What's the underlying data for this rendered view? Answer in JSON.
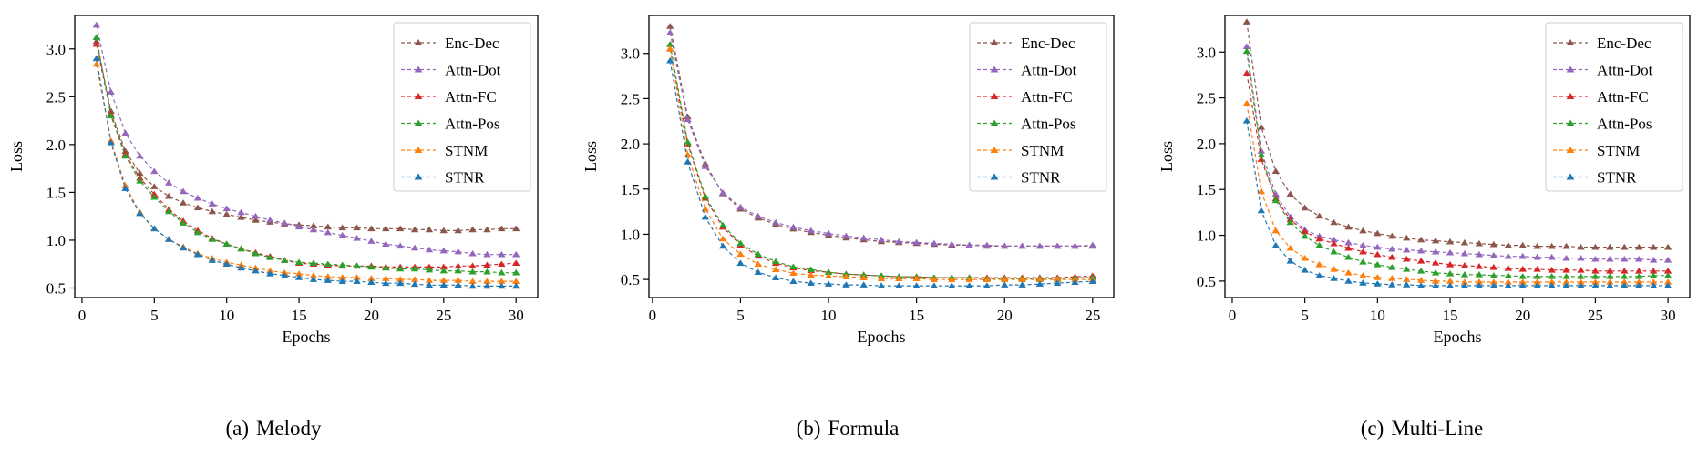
{
  "colors": {
    "Enc-Dec": "#8c564b",
    "Attn-Dot": "#9467bd",
    "Attn-FC": "#d62728",
    "Attn-Pos": "#2ca02c",
    "STNM": "#ff7f0e",
    "STNR": "#1f77b4"
  },
  "chart_data": [
    {
      "type": "line",
      "caption_tag": "(a)",
      "caption_title": "Melody",
      "xlabel": "Epochs",
      "ylabel": "Loss",
      "xlim": [
        -0.5,
        31.5
      ],
      "ylim": [
        0.4,
        3.35
      ],
      "xticks": [
        0,
        5,
        10,
        15,
        20,
        25,
        30
      ],
      "yticks": [
        0.5,
        1.0,
        1.5,
        2.0,
        2.5,
        3.0
      ],
      "ytick_labels": [
        "0.5",
        "1.0",
        "1.5",
        "2.0",
        "2.5",
        "3.0"
      ],
      "legend_position": "top-right",
      "x": [
        1,
        2,
        3,
        4,
        5,
        6,
        7,
        8,
        9,
        10,
        11,
        12,
        13,
        14,
        15,
        16,
        17,
        18,
        19,
        20,
        21,
        22,
        23,
        24,
        25,
        26,
        27,
        28,
        29,
        30
      ],
      "series": [
        {
          "name": "Enc-Dec",
          "values": [
            3.08,
            2.35,
            1.93,
            1.7,
            1.56,
            1.46,
            1.39,
            1.34,
            1.3,
            1.27,
            1.24,
            1.21,
            1.19,
            1.17,
            1.16,
            1.15,
            1.14,
            1.13,
            1.13,
            1.12,
            1.12,
            1.12,
            1.11,
            1.11,
            1.1,
            1.1,
            1.11,
            1.11,
            1.12,
            1.12
          ]
        },
        {
          "name": "Attn-Dot",
          "values": [
            3.25,
            2.55,
            2.12,
            1.88,
            1.72,
            1.6,
            1.51,
            1.44,
            1.38,
            1.33,
            1.29,
            1.25,
            1.21,
            1.18,
            1.14,
            1.11,
            1.08,
            1.05,
            1.02,
            0.99,
            0.96,
            0.94,
            0.92,
            0.9,
            0.89,
            0.88,
            0.86,
            0.85,
            0.85,
            0.85
          ]
        },
        {
          "name": "Attn-FC",
          "values": [
            3.05,
            2.32,
            1.9,
            1.65,
            1.48,
            1.32,
            1.2,
            1.1,
            1.02,
            0.96,
            0.91,
            0.87,
            0.83,
            0.79,
            0.76,
            0.75,
            0.74,
            0.73,
            0.73,
            0.73,
            0.72,
            0.72,
            0.72,
            0.72,
            0.72,
            0.73,
            0.73,
            0.74,
            0.75,
            0.76
          ]
        },
        {
          "name": "Attn-Pos",
          "values": [
            3.12,
            2.3,
            1.88,
            1.62,
            1.45,
            1.3,
            1.18,
            1.08,
            1.01,
            0.96,
            0.91,
            0.86,
            0.82,
            0.79,
            0.77,
            0.76,
            0.75,
            0.74,
            0.73,
            0.72,
            0.71,
            0.7,
            0.7,
            0.69,
            0.68,
            0.68,
            0.67,
            0.67,
            0.66,
            0.66
          ]
        },
        {
          "name": "STNM",
          "values": [
            2.84,
            2.04,
            1.57,
            1.29,
            1.12,
            1.01,
            0.93,
            0.86,
            0.81,
            0.77,
            0.74,
            0.71,
            0.68,
            0.66,
            0.65,
            0.63,
            0.62,
            0.61,
            0.61,
            0.6,
            0.6,
            0.59,
            0.59,
            0.58,
            0.58,
            0.58,
            0.57,
            0.57,
            0.57,
            0.57
          ]
        },
        {
          "name": "STNR",
          "values": [
            2.9,
            2.02,
            1.54,
            1.28,
            1.12,
            1.01,
            0.92,
            0.85,
            0.79,
            0.75,
            0.71,
            0.68,
            0.65,
            0.63,
            0.61,
            0.59,
            0.58,
            0.57,
            0.57,
            0.56,
            0.55,
            0.55,
            0.54,
            0.53,
            0.53,
            0.53,
            0.52,
            0.52,
            0.52,
            0.52
          ]
        }
      ]
    },
    {
      "type": "line",
      "caption_tag": "(b)",
      "caption_title": "Formula",
      "xlabel": "Epochs",
      "ylabel": "Loss",
      "xlim": [
        -0.2,
        26.2
      ],
      "ylim": [
        0.3,
        3.42
      ],
      "xticks": [
        0,
        5,
        10,
        15,
        20,
        25
      ],
      "yticks": [
        0.5,
        1.0,
        1.5,
        2.0,
        2.5,
        3.0
      ],
      "ytick_labels": [
        "0.5",
        "1.0",
        "1.5",
        "2.0",
        "2.5",
        "3.0"
      ],
      "legend_position": "top-right",
      "x": [
        1,
        2,
        3,
        4,
        5,
        6,
        7,
        8,
        9,
        10,
        11,
        12,
        13,
        14,
        15,
        16,
        17,
        18,
        19,
        20,
        21,
        22,
        23,
        24,
        25
      ],
      "series": [
        {
          "name": "Enc-Dec",
          "values": [
            3.3,
            2.3,
            1.78,
            1.45,
            1.28,
            1.18,
            1.11,
            1.06,
            1.02,
            0.99,
            0.96,
            0.94,
            0.92,
            0.91,
            0.9,
            0.89,
            0.88,
            0.88,
            0.87,
            0.87,
            0.87,
            0.87,
            0.87,
            0.87,
            0.87
          ]
        },
        {
          "name": "Attn-Dot",
          "values": [
            3.23,
            2.27,
            1.75,
            1.46,
            1.3,
            1.2,
            1.13,
            1.08,
            1.04,
            1.01,
            0.98,
            0.96,
            0.94,
            0.92,
            0.91,
            0.9,
            0.89,
            0.88,
            0.88,
            0.87,
            0.87,
            0.87,
            0.87,
            0.87,
            0.88
          ]
        },
        {
          "name": "Attn-FC",
          "values": [
            3.05,
            2.0,
            1.4,
            1.08,
            0.88,
            0.76,
            0.68,
            0.63,
            0.6,
            0.58,
            0.56,
            0.55,
            0.54,
            0.53,
            0.53,
            0.52,
            0.52,
            0.52,
            0.52,
            0.52,
            0.52,
            0.52,
            0.52,
            0.53,
            0.54
          ]
        },
        {
          "name": "Attn-Pos",
          "values": [
            3.1,
            2.02,
            1.42,
            1.1,
            0.9,
            0.78,
            0.7,
            0.64,
            0.61,
            0.58,
            0.56,
            0.55,
            0.54,
            0.53,
            0.53,
            0.52,
            0.52,
            0.52,
            0.51,
            0.51,
            0.51,
            0.51,
            0.51,
            0.52,
            0.52
          ]
        },
        {
          "name": "STNM",
          "values": [
            3.05,
            1.88,
            1.28,
            0.95,
            0.78,
            0.67,
            0.61,
            0.57,
            0.55,
            0.54,
            0.53,
            0.52,
            0.51,
            0.51,
            0.51,
            0.5,
            0.5,
            0.5,
            0.5,
            0.5,
            0.5,
            0.5,
            0.5,
            0.5,
            0.5
          ]
        },
        {
          "name": "STNR",
          "values": [
            2.92,
            1.8,
            1.19,
            0.87,
            0.68,
            0.58,
            0.52,
            0.48,
            0.46,
            0.45,
            0.44,
            0.44,
            0.43,
            0.43,
            0.43,
            0.43,
            0.43,
            0.43,
            0.43,
            0.44,
            0.44,
            0.45,
            0.46,
            0.47,
            0.48
          ]
        }
      ]
    },
    {
      "type": "line",
      "caption_tag": "(c)",
      "caption_title": "Multi-Line",
      "xlabel": "Epochs",
      "ylabel": "Loss",
      "xlim": [
        -0.5,
        31.5
      ],
      "ylim": [
        0.32,
        3.4
      ],
      "xticks": [
        0,
        5,
        10,
        15,
        20,
        25,
        30
      ],
      "yticks": [
        0.5,
        1.0,
        1.5,
        2.0,
        2.5,
        3.0
      ],
      "ytick_labels": [
        "0.5",
        "1.0",
        "1.5",
        "2.0",
        "2.5",
        "3.0"
      ],
      "legend_position": "top-right",
      "x": [
        1,
        2,
        3,
        4,
        5,
        6,
        7,
        8,
        9,
        10,
        11,
        12,
        13,
        14,
        15,
        16,
        17,
        18,
        19,
        20,
        21,
        22,
        23,
        24,
        25,
        26,
        27,
        28,
        29,
        30
      ],
      "series": [
        {
          "name": "Enc-Dec",
          "values": [
            3.33,
            2.18,
            1.7,
            1.45,
            1.3,
            1.21,
            1.14,
            1.09,
            1.05,
            1.02,
            0.99,
            0.97,
            0.95,
            0.94,
            0.93,
            0.92,
            0.91,
            0.9,
            0.89,
            0.89,
            0.88,
            0.88,
            0.88,
            0.87,
            0.87,
            0.87,
            0.87,
            0.87,
            0.87,
            0.87
          ]
        },
        {
          "name": "Attn-Dot",
          "values": [
            3.06,
            1.92,
            1.45,
            1.2,
            1.06,
            0.99,
            0.95,
            0.92,
            0.89,
            0.87,
            0.85,
            0.84,
            0.83,
            0.82,
            0.81,
            0.8,
            0.79,
            0.78,
            0.77,
            0.77,
            0.76,
            0.76,
            0.75,
            0.75,
            0.74,
            0.74,
            0.74,
            0.74,
            0.73,
            0.73
          ]
        },
        {
          "name": "Attn-FC",
          "values": [
            2.77,
            1.83,
            1.4,
            1.17,
            1.04,
            0.96,
            0.91,
            0.86,
            0.82,
            0.79,
            0.76,
            0.74,
            0.72,
            0.7,
            0.68,
            0.67,
            0.66,
            0.65,
            0.64,
            0.63,
            0.63,
            0.62,
            0.62,
            0.62,
            0.61,
            0.61,
            0.61,
            0.61,
            0.61,
            0.61
          ]
        },
        {
          "name": "Attn-Pos",
          "values": [
            3.01,
            1.88,
            1.38,
            1.14,
            0.99,
            0.89,
            0.82,
            0.76,
            0.71,
            0.68,
            0.65,
            0.63,
            0.61,
            0.59,
            0.58,
            0.57,
            0.57,
            0.56,
            0.56,
            0.55,
            0.55,
            0.55,
            0.55,
            0.55,
            0.55,
            0.55,
            0.55,
            0.55,
            0.56,
            0.56
          ]
        },
        {
          "name": "STNM",
          "values": [
            2.44,
            1.48,
            1.05,
            0.86,
            0.75,
            0.68,
            0.63,
            0.59,
            0.56,
            0.54,
            0.53,
            0.52,
            0.51,
            0.5,
            0.5,
            0.49,
            0.49,
            0.49,
            0.49,
            0.49,
            0.49,
            0.49,
            0.49,
            0.49,
            0.49,
            0.49,
            0.49,
            0.49,
            0.49,
            0.49
          ]
        },
        {
          "name": "STNR",
          "values": [
            2.25,
            1.27,
            0.89,
            0.72,
            0.62,
            0.56,
            0.53,
            0.5,
            0.48,
            0.47,
            0.46,
            0.46,
            0.45,
            0.45,
            0.45,
            0.45,
            0.45,
            0.45,
            0.45,
            0.45,
            0.45,
            0.45,
            0.45,
            0.45,
            0.45,
            0.45,
            0.45,
            0.45,
            0.45,
            0.45
          ]
        }
      ]
    }
  ]
}
